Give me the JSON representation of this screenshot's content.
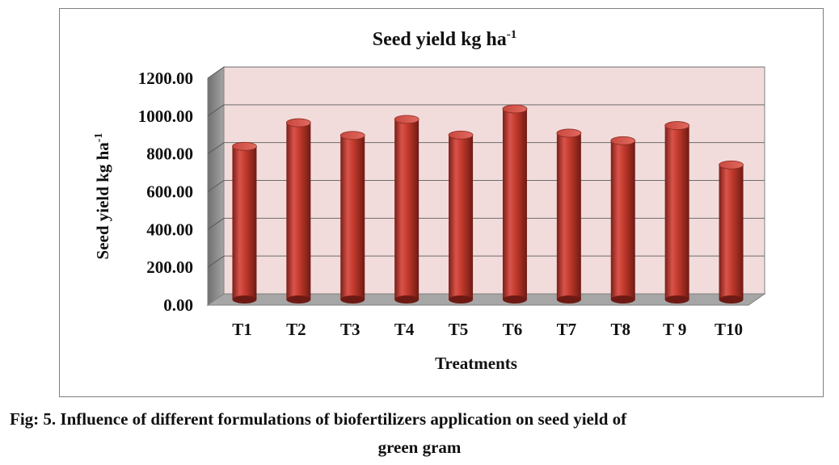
{
  "chart_data": {
    "type": "bar",
    "title": "Seed yield kg ha",
    "title_superscript": "-1",
    "xlabel": "Treatments",
    "ylabel": "Seed yield kg ha",
    "ylabel_superscript": "-1",
    "categories": [
      "T1",
      "T2",
      "T3",
      "T4",
      "T5",
      "T6",
      "T7",
      "T8",
      "T 9",
      "T10"
    ],
    "values": [
      810,
      935,
      868,
      953,
      870,
      1008,
      880,
      840,
      920,
      712
    ],
    "ylim": [
      0,
      1200
    ],
    "yticks": [
      "0.00",
      "200.00",
      "400.00",
      "600.00",
      "800.00",
      "1000.00",
      "1200.00"
    ],
    "grid": true,
    "bar_style": "3d-cylinder",
    "colors": {
      "bar": "#c0392b",
      "wall": "#f2dcdb",
      "floor": "#a6a6a6",
      "side_wall": "#8c8c8c"
    }
  },
  "caption": {
    "line1": "Fig: 5. Influence of different formulations of biofertilizers application on seed yield of",
    "line2": "green gram"
  }
}
